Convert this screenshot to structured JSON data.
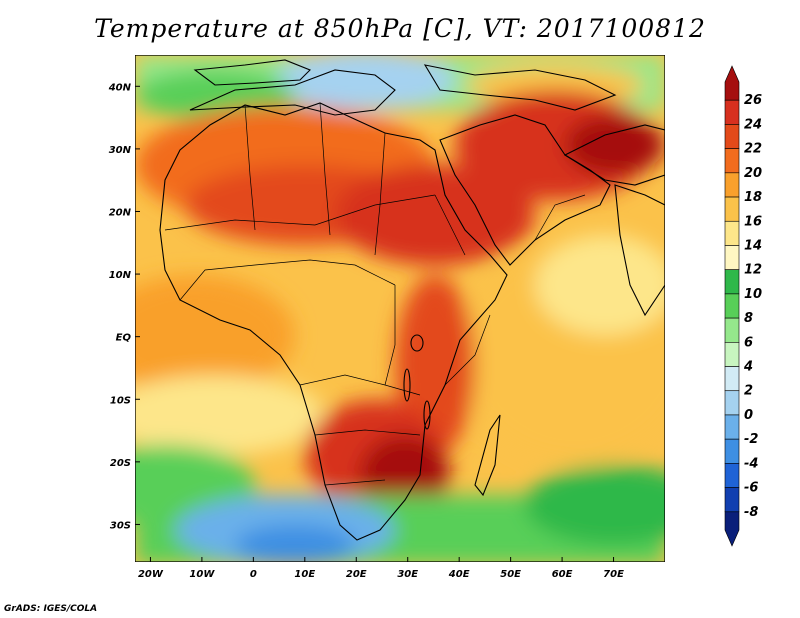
{
  "title": "Temperature at 850hPa [C], VT: 2017100812",
  "credit": "GrADS: IGES/COLA",
  "map": {
    "lon_range": [
      -23,
      80
    ],
    "lat_range": [
      -36,
      45
    ],
    "lon_ticks": [
      {
        "value": -20,
        "label": "20W"
      },
      {
        "value": -10,
        "label": "10W"
      },
      {
        "value": 0,
        "label": "0"
      },
      {
        "value": 10,
        "label": "10E"
      },
      {
        "value": 20,
        "label": "20E"
      },
      {
        "value": 30,
        "label": "30E"
      },
      {
        "value": 40,
        "label": "40E"
      },
      {
        "value": 50,
        "label": "50E"
      },
      {
        "value": 60,
        "label": "60E"
      },
      {
        "value": 70,
        "label": "70E"
      }
    ],
    "lat_ticks": [
      {
        "value": 40,
        "label": "40N"
      },
      {
        "value": 30,
        "label": "30N"
      },
      {
        "value": 20,
        "label": "20N"
      },
      {
        "value": 10,
        "label": "10N"
      },
      {
        "value": 0,
        "label": "EQ"
      },
      {
        "value": -10,
        "label": "10S"
      },
      {
        "value": -20,
        "label": "20S"
      },
      {
        "value": -30,
        "label": "30S"
      }
    ]
  },
  "colorbar": {
    "labels": [
      "26",
      "24",
      "22",
      "20",
      "18",
      "16",
      "14",
      "12",
      "10",
      "8",
      "6",
      "4",
      "2",
      "0",
      "-2",
      "-4",
      "-6",
      "-8"
    ],
    "colors": [
      "#a50f0f",
      "#d7301f",
      "#e34a1a",
      "#f26c1e",
      "#f9a02c",
      "#fbc24a",
      "#fde68a",
      "#fff7c2",
      "#2fb84a",
      "#58cf58",
      "#95e88c",
      "#c8f5c0",
      "#d2ebf5",
      "#a5d2f0",
      "#6bb0ea",
      "#3e8fe3",
      "#1f63d6",
      "#113fb0",
      "#0a1f7a"
    ]
  }
}
